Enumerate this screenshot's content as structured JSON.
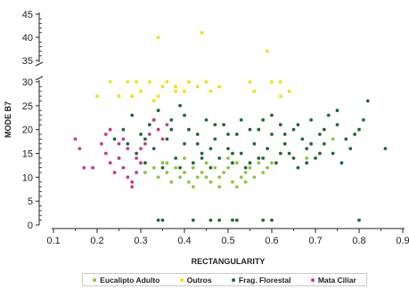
{
  "chart_data": {
    "type": "scatter",
    "title": "",
    "xlabel": "RECTANGULARITY",
    "ylabel": "MODE B7",
    "xlim": [
      0.1,
      0.9
    ],
    "ylim": [
      0,
      45
    ],
    "y_axis_break": [
      30,
      35
    ],
    "xticks": [
      "0.1",
      "0.2",
      "0.3",
      "0.4",
      "0.5",
      "0.6",
      "0.7",
      "0.8",
      "0.9"
    ],
    "yticks": [
      "0",
      "5",
      "10",
      "15",
      "20",
      "25",
      "30",
      "35",
      "40",
      "45"
    ],
    "grid": false,
    "legend_position": "bottom",
    "series": [
      {
        "name": "Eucalipto Adulto",
        "color": "#8cc63f",
        "points": [
          [
            0.31,
            11
          ],
          [
            0.33,
            12
          ],
          [
            0.34,
            10
          ],
          [
            0.35,
            13
          ],
          [
            0.36,
            11
          ],
          [
            0.37,
            9
          ],
          [
            0.38,
            12
          ],
          [
            0.39,
            10
          ],
          [
            0.4,
            11
          ],
          [
            0.41,
            9
          ],
          [
            0.42,
            12
          ],
          [
            0.43,
            10
          ],
          [
            0.44,
            11
          ],
          [
            0.45,
            13
          ],
          [
            0.46,
            9
          ],
          [
            0.47,
            12
          ],
          [
            0.48,
            10
          ],
          [
            0.49,
            11
          ],
          [
            0.5,
            12
          ],
          [
            0.51,
            9
          ],
          [
            0.52,
            13
          ],
          [
            0.53,
            10
          ],
          [
            0.54,
            11
          ],
          [
            0.55,
            12
          ],
          [
            0.56,
            10
          ],
          [
            0.57,
            13
          ],
          [
            0.58,
            11
          ],
          [
            0.59,
            12
          ],
          [
            0.4,
            14
          ],
          [
            0.36,
            13
          ],
          [
            0.5,
            14
          ],
          [
            0.54,
            9
          ],
          [
            0.45,
            10
          ],
          [
            0.6,
            13
          ],
          [
            0.68,
            14
          ],
          [
            0.74,
            18
          ],
          [
            0.42,
            8
          ],
          [
            0.48,
            8
          ],
          [
            0.52,
            8
          ]
        ]
      },
      {
        "name": "Outros",
        "color": "#f2e000",
        "points": [
          [
            0.34,
            40
          ],
          [
            0.44,
            41
          ],
          [
            0.59,
            37
          ],
          [
            0.6,
            34
          ],
          [
            0.45,
            34
          ],
          [
            0.27,
            33
          ],
          [
            0.23,
            31
          ],
          [
            0.29,
            32
          ],
          [
            0.32,
            30
          ],
          [
            0.35,
            29
          ],
          [
            0.36,
            30
          ],
          [
            0.38,
            29
          ],
          [
            0.4,
            28
          ],
          [
            0.41,
            30
          ],
          [
            0.43,
            29
          ],
          [
            0.46,
            28
          ],
          [
            0.48,
            29
          ],
          [
            0.25,
            27
          ],
          [
            0.2,
            27
          ],
          [
            0.3,
            28
          ],
          [
            0.34,
            27
          ],
          [
            0.55,
            30
          ],
          [
            0.62,
            30
          ],
          [
            0.64,
            28
          ],
          [
            0.56,
            28
          ],
          [
            0.62,
            27
          ],
          [
            0.33,
            26
          ],
          [
            0.38,
            28
          ],
          [
            0.28,
            27
          ]
        ]
      },
      {
        "name": "Frag. Florestal",
        "color": "#1e6b32",
        "points": [
          [
            0.24,
            18
          ],
          [
            0.25,
            14
          ],
          [
            0.26,
            20
          ],
          [
            0.27,
            17
          ],
          [
            0.28,
            23
          ],
          [
            0.29,
            15
          ],
          [
            0.3,
            19
          ],
          [
            0.31,
            13
          ],
          [
            0.32,
            21
          ],
          [
            0.33,
            16
          ],
          [
            0.34,
            24
          ],
          [
            0.35,
            12
          ],
          [
            0.36,
            18
          ],
          [
            0.37,
            22
          ],
          [
            0.38,
            14
          ],
          [
            0.39,
            25
          ],
          [
            0.4,
            17
          ],
          [
            0.41,
            20
          ],
          [
            0.42,
            13
          ],
          [
            0.43,
            19
          ],
          [
            0.44,
            15
          ],
          [
            0.45,
            22
          ],
          [
            0.46,
            12
          ],
          [
            0.47,
            18
          ],
          [
            0.48,
            14
          ],
          [
            0.49,
            21
          ],
          [
            0.5,
            16
          ],
          [
            0.51,
            13
          ],
          [
            0.52,
            19
          ],
          [
            0.53,
            15
          ],
          [
            0.54,
            12
          ],
          [
            0.55,
            20
          ],
          [
            0.56,
            17
          ],
          [
            0.57,
            14
          ],
          [
            0.58,
            22
          ],
          [
            0.59,
            16
          ],
          [
            0.6,
            19
          ],
          [
            0.61,
            13
          ],
          [
            0.62,
            21
          ],
          [
            0.63,
            17
          ],
          [
            0.64,
            15
          ],
          [
            0.65,
            20
          ],
          [
            0.66,
            12
          ],
          [
            0.67,
            18
          ],
          [
            0.68,
            16
          ],
          [
            0.69,
            22
          ],
          [
            0.7,
            14
          ],
          [
            0.71,
            19
          ],
          [
            0.72,
            17
          ],
          [
            0.73,
            23
          ],
          [
            0.74,
            15
          ],
          [
            0.75,
            21
          ],
          [
            0.76,
            13
          ],
          [
            0.77,
            18
          ],
          [
            0.78,
            16
          ],
          [
            0.8,
            20
          ],
          [
            0.82,
            26
          ],
          [
            0.86,
            16
          ],
          [
            0.79,
            19
          ],
          [
            0.81,
            22
          ],
          [
            0.35,
            1
          ],
          [
            0.34,
            1
          ],
          [
            0.42,
            1
          ],
          [
            0.46,
            1
          ],
          [
            0.48,
            1
          ],
          [
            0.51,
            1
          ],
          [
            0.52,
            1
          ],
          [
            0.58,
            1
          ],
          [
            0.6,
            1
          ],
          [
            0.8,
            1
          ],
          [
            0.31,
            18
          ],
          [
            0.33,
            22
          ],
          [
            0.37,
            20
          ],
          [
            0.4,
            23
          ],
          [
            0.43,
            17
          ],
          [
            0.47,
            21
          ],
          [
            0.5,
            19
          ],
          [
            0.53,
            22
          ],
          [
            0.57,
            20
          ],
          [
            0.6,
            23
          ],
          [
            0.63,
            19
          ],
          [
            0.66,
            21
          ],
          [
            0.69,
            17
          ],
          [
            0.72,
            20
          ],
          [
            0.75,
            24
          ],
          [
            0.39,
            12
          ],
          [
            0.44,
            14
          ],
          [
            0.46,
            16
          ],
          [
            0.51,
            15
          ],
          [
            0.55,
            13
          ],
          [
            0.58,
            14
          ],
          [
            0.62,
            15
          ],
          [
            0.65,
            14
          ],
          [
            0.68,
            13
          ],
          [
            0.71,
            15
          ]
        ]
      },
      {
        "name": "Mata Ciliar",
        "color": "#c8388f",
        "points": [
          [
            0.15,
            18
          ],
          [
            0.16,
            16
          ],
          [
            0.17,
            12
          ],
          [
            0.19,
            12
          ],
          [
            0.21,
            17
          ],
          [
            0.22,
            15
          ],
          [
            0.23,
            13
          ],
          [
            0.24,
            11
          ],
          [
            0.25,
            14
          ],
          [
            0.26,
            12
          ],
          [
            0.27,
            10
          ],
          [
            0.28,
            9
          ],
          [
            0.29,
            11
          ],
          [
            0.3,
            13
          ],
          [
            0.31,
            17
          ],
          [
            0.32,
            19
          ],
          [
            0.33,
            22
          ],
          [
            0.34,
            20
          ],
          [
            0.35,
            18
          ],
          [
            0.36,
            21
          ],
          [
            0.28,
            8
          ],
          [
            0.27,
            16
          ],
          [
            0.26,
            18
          ],
          [
            0.23,
            20
          ],
          [
            0.22,
            19
          ],
          [
            0.29,
            14
          ],
          [
            0.3,
            16
          ],
          [
            0.25,
            17
          ]
        ]
      }
    ]
  }
}
